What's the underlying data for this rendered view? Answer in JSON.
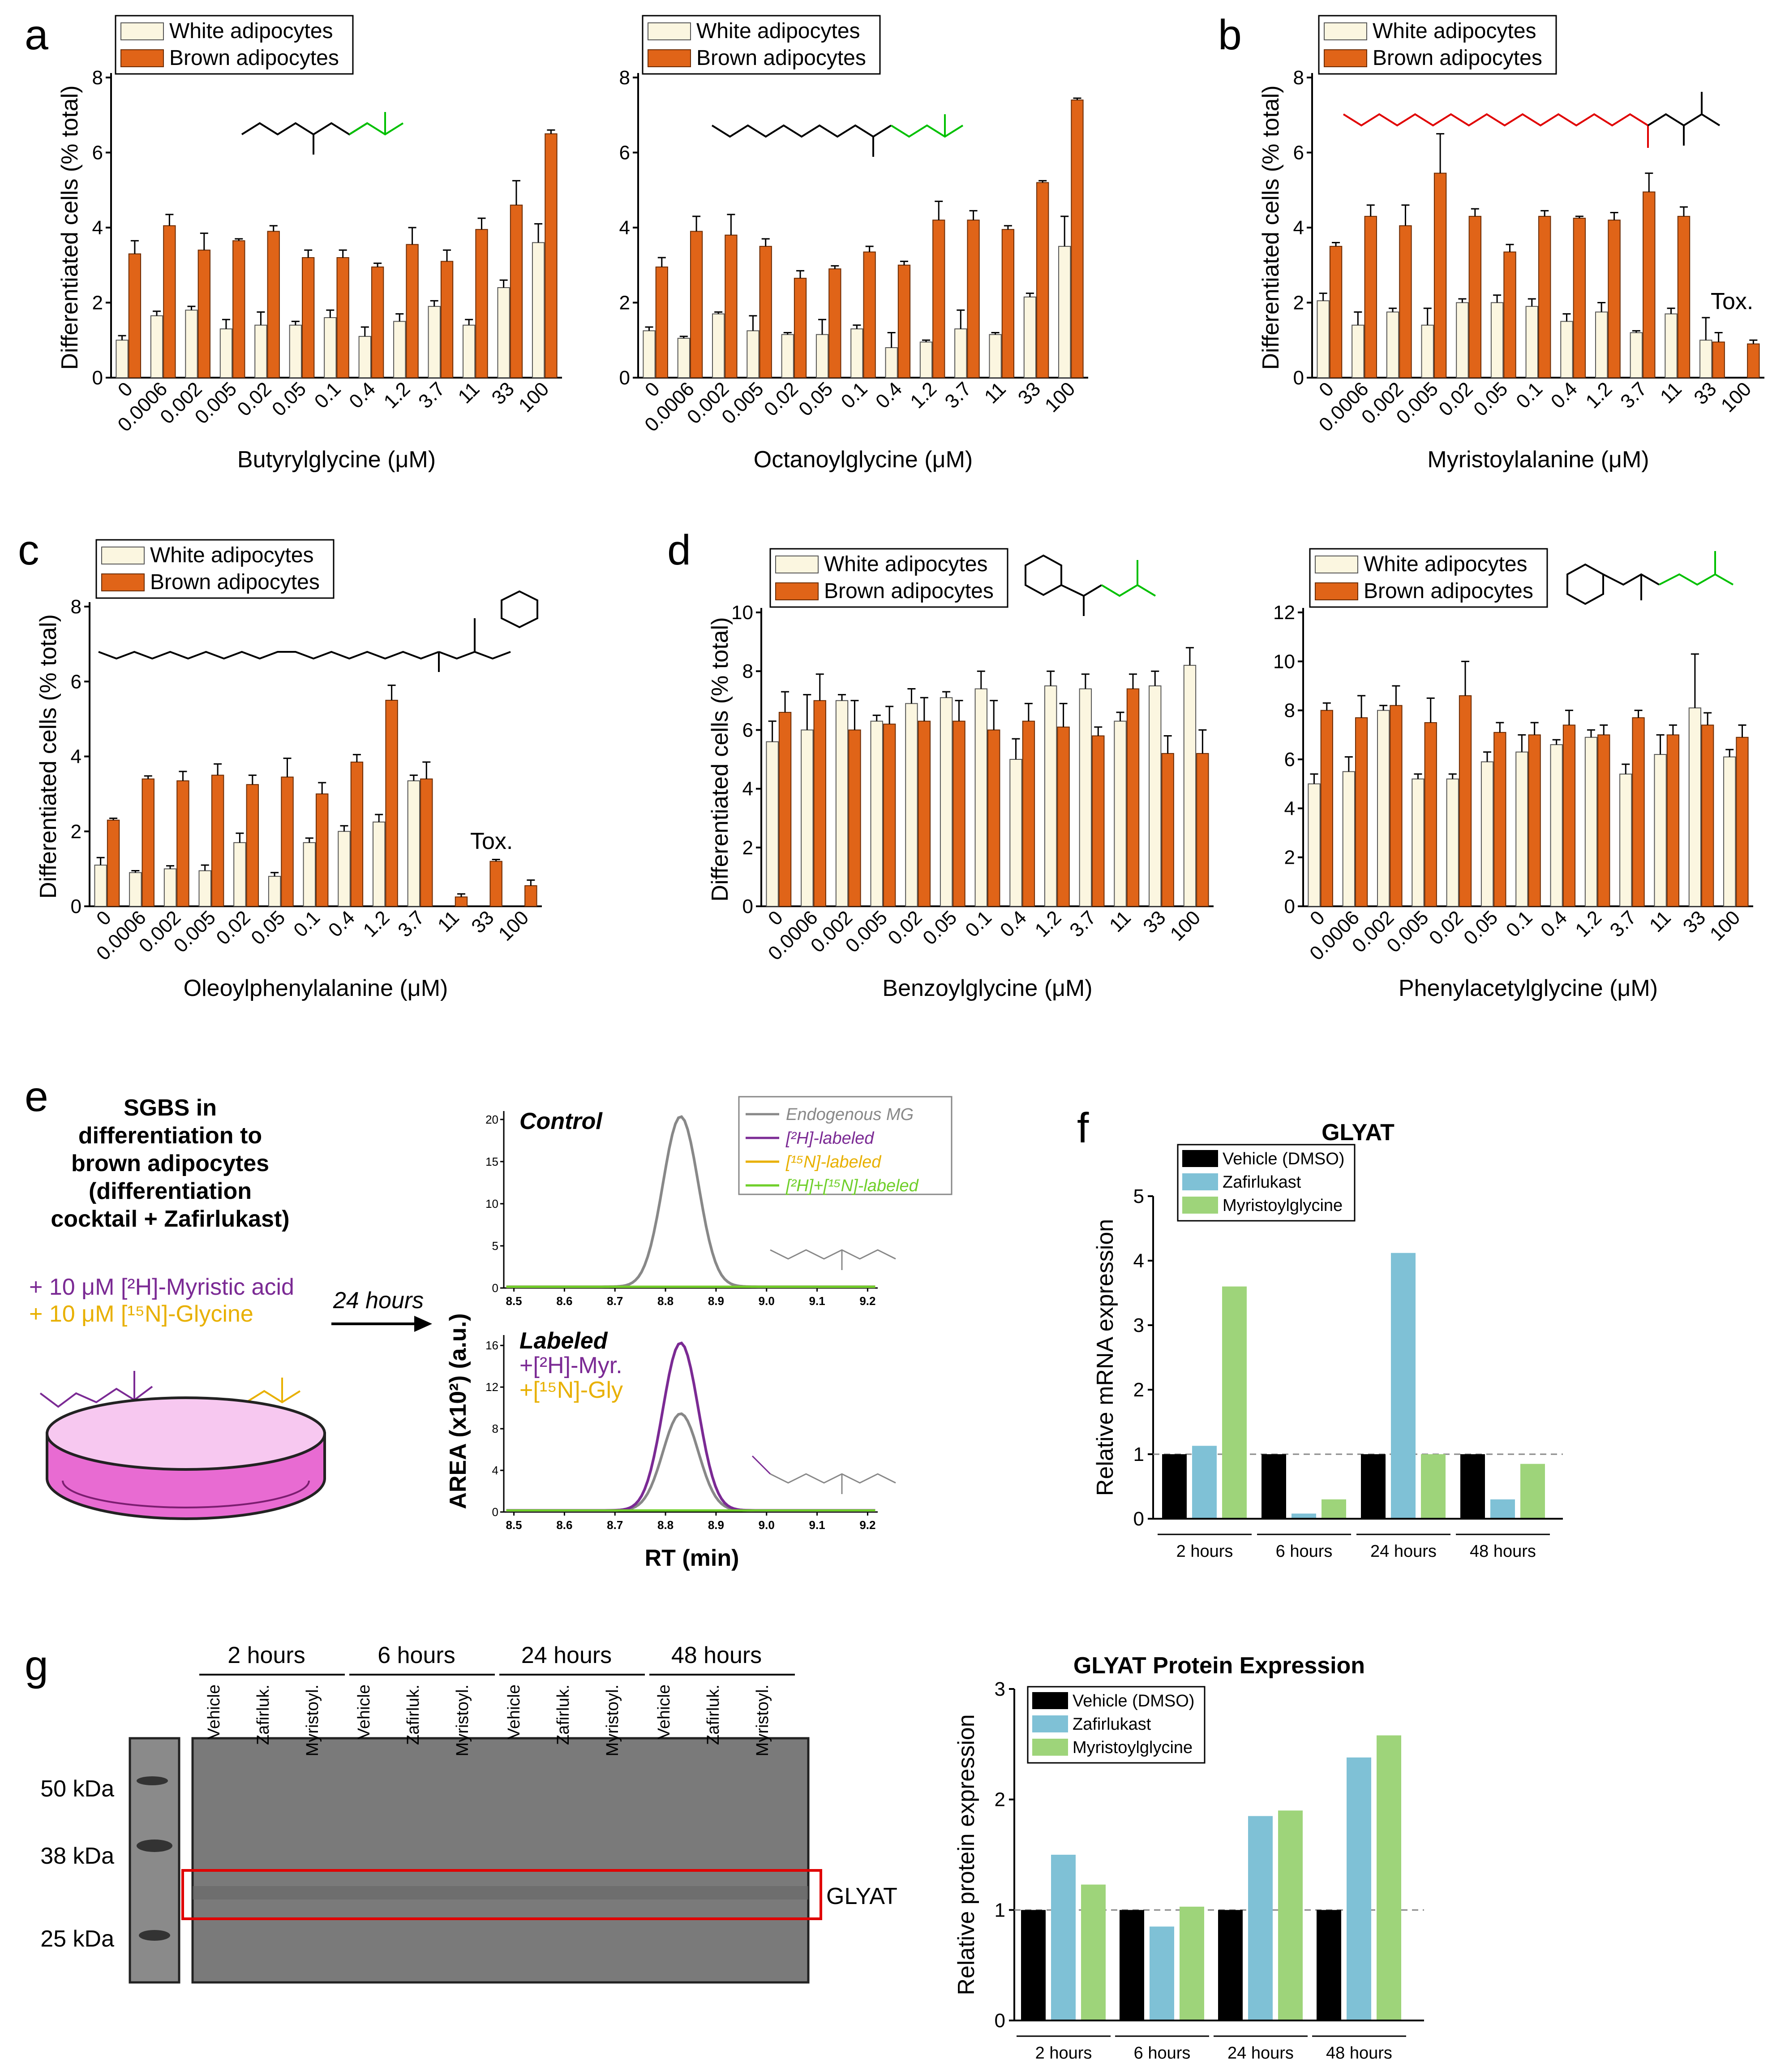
{
  "colors": {
    "white": "#FBF6E0",
    "brown": "#E06418",
    "vehicle": "#000000",
    "zafirlukast": "#7FC1D6",
    "myristoyl": "#9ED47A",
    "purple": "#7B2A94",
    "gold": "#E8B000",
    "green": "#6FCF2A",
    "grey": "#888888",
    "red": "#E00000"
  },
  "panels": {
    "a": "a",
    "b": "b",
    "c": "c",
    "d": "d",
    "e": "e",
    "f": "f",
    "g": "g"
  },
  "legend": {
    "white": "White adipocytes",
    "brown": "Brown adipocytes"
  },
  "common": {
    "ylabel": "Differentiated cells (% total)",
    "tox": "Tox."
  },
  "chart_data": [
    {
      "id": "butyryl",
      "type": "bar",
      "xlabel": "Butyrylglycine (μM)",
      "ylim": [
        0,
        8
      ],
      "yticks": [
        0,
        2,
        4,
        6,
        8
      ],
      "categories": [
        "0",
        "0.0006",
        "0.002",
        "0.005",
        "0.02",
        "0.05",
        "0.1",
        "0.4",
        "1.2",
        "3.7",
        "11",
        "33",
        "100"
      ],
      "series": [
        {
          "name": "White adipocytes",
          "values": [
            1.0,
            1.65,
            1.8,
            1.3,
            1.4,
            1.4,
            1.6,
            1.1,
            1.5,
            1.9,
            1.4,
            2.4,
            3.6
          ],
          "err": [
            0.12,
            0.12,
            0.1,
            0.25,
            0.35,
            0.1,
            0.2,
            0.25,
            0.2,
            0.15,
            0.15,
            0.2,
            0.5
          ]
        },
        {
          "name": "Brown adipocytes",
          "values": [
            3.3,
            4.05,
            3.4,
            3.65,
            3.9,
            3.2,
            3.2,
            2.95,
            3.55,
            3.1,
            3.95,
            4.6,
            6.5
          ],
          "err": [
            0.35,
            0.3,
            0.45,
            0.05,
            0.15,
            0.2,
            0.2,
            0.1,
            0.45,
            0.3,
            0.3,
            0.65,
            0.1
          ]
        }
      ]
    },
    {
      "id": "octanoyl",
      "type": "bar",
      "xlabel": "Octanoylglycine (μM)",
      "ylim": [
        0,
        8
      ],
      "yticks": [
        0,
        2,
        4,
        6,
        8
      ],
      "categories": [
        "0",
        "0.0006",
        "0.002",
        "0.005",
        "0.02",
        "0.05",
        "0.1",
        "0.4",
        "1.2",
        "3.7",
        "11",
        "33",
        "100"
      ],
      "series": [
        {
          "name": "White adipocytes",
          "values": [
            1.25,
            1.05,
            1.7,
            1.25,
            1.15,
            1.15,
            1.3,
            0.8,
            0.95,
            1.3,
            1.15,
            2.15,
            3.5
          ],
          "err": [
            0.1,
            0.05,
            0.05,
            0.4,
            0.05,
            0.4,
            0.1,
            0.4,
            0.05,
            0.5,
            0.05,
            0.1,
            0.8
          ]
        },
        {
          "name": "Brown adipocytes",
          "values": [
            2.95,
            3.9,
            3.8,
            3.5,
            2.65,
            2.9,
            3.35,
            3.0,
            4.2,
            4.2,
            3.95,
            5.2,
            7.4
          ],
          "err": [
            0.25,
            0.4,
            0.55,
            0.2,
            0.2,
            0.08,
            0.15,
            0.1,
            0.5,
            0.25,
            0.1,
            0.05,
            0.05
          ]
        }
      ]
    },
    {
      "id": "myristoyl",
      "type": "bar",
      "xlabel": "Myristoylalanine (μM)",
      "ylim": [
        0,
        8
      ],
      "yticks": [
        0,
        2,
        4,
        6,
        8
      ],
      "annotation": "Tox.",
      "categories": [
        "0",
        "0.0006",
        "0.002",
        "0.005",
        "0.02",
        "0.05",
        "0.1",
        "0.4",
        "1.2",
        "3.7",
        "11",
        "33",
        "100"
      ],
      "series": [
        {
          "name": "White adipocytes",
          "values": [
            2.05,
            1.4,
            1.75,
            1.4,
            2.0,
            2.0,
            1.9,
            1.5,
            1.75,
            1.2,
            1.7,
            1.0,
            0
          ],
          "err": [
            0.2,
            0.35,
            0.1,
            0.45,
            0.1,
            0.2,
            0.2,
            0.2,
            0.25,
            0.05,
            0.15,
            0.6,
            0
          ]
        },
        {
          "name": "Brown adipocytes",
          "values": [
            3.5,
            4.3,
            4.05,
            5.45,
            4.3,
            3.35,
            4.3,
            4.25,
            4.2,
            4.95,
            4.3,
            0.95,
            0.9
          ],
          "err": [
            0.1,
            0.3,
            0.55,
            1.05,
            0.2,
            0.2,
            0.15,
            0.05,
            0.2,
            0.5,
            0.25,
            0.25,
            0.1
          ]
        }
      ]
    },
    {
      "id": "oleoyl",
      "type": "bar",
      "xlabel": "Oleoylphenylalanine (μM)",
      "ylim": [
        0,
        8
      ],
      "yticks": [
        0,
        2,
        4,
        6,
        8
      ],
      "annotation": "Tox.",
      "categories": [
        "0",
        "0.0006",
        "0.002",
        "0.005",
        "0.02",
        "0.05",
        "0.1",
        "0.4",
        "1.2",
        "3.7",
        "11",
        "33",
        "100"
      ],
      "series": [
        {
          "name": "White adipocytes",
          "values": [
            1.1,
            0.9,
            1.0,
            0.95,
            1.7,
            0.8,
            1.7,
            2.0,
            2.25,
            3.35,
            0,
            0,
            0
          ],
          "err": [
            0.2,
            0.05,
            0.08,
            0.15,
            0.25,
            0.1,
            0.12,
            0.15,
            0.2,
            0.15,
            0,
            0,
            0
          ]
        },
        {
          "name": "Brown adipocytes",
          "values": [
            2.3,
            3.4,
            3.35,
            3.5,
            3.25,
            3.45,
            3.0,
            3.85,
            5.5,
            3.4,
            0.25,
            1.2,
            0.55
          ],
          "err": [
            0.05,
            0.08,
            0.25,
            0.3,
            0.25,
            0.5,
            0.3,
            0.2,
            0.4,
            0.45,
            0.08,
            0.05,
            0.15
          ]
        }
      ]
    },
    {
      "id": "benzoyl",
      "type": "bar",
      "xlabel": "Benzoylglycine (μM)",
      "ylim": [
        0,
        10
      ],
      "yticks": [
        0,
        2,
        4,
        6,
        8,
        10
      ],
      "categories": [
        "0",
        "0.0006",
        "0.002",
        "0.005",
        "0.02",
        "0.05",
        "0.1",
        "0.4",
        "1.2",
        "3.7",
        "11",
        "33",
        "100"
      ],
      "series": [
        {
          "name": "White adipocytes",
          "values": [
            5.6,
            6.0,
            7.0,
            6.3,
            6.9,
            7.1,
            7.4,
            5.0,
            7.5,
            7.4,
            6.3,
            7.5,
            8.2
          ],
          "err": [
            0.7,
            1.2,
            0.2,
            0.2,
            0.5,
            0.2,
            0.6,
            0.7,
            0.5,
            0.5,
            0.3,
            0.5,
            0.6
          ]
        },
        {
          "name": "Brown adipocytes",
          "values": [
            6.6,
            7.0,
            6.0,
            6.2,
            6.3,
            6.3,
            6.0,
            6.3,
            6.1,
            5.8,
            7.4,
            5.2,
            5.2
          ],
          "err": [
            0.7,
            0.9,
            1.0,
            0.6,
            0.8,
            0.7,
            1.0,
            0.6,
            0.8,
            0.3,
            0.5,
            0.6,
            0.8
          ]
        }
      ]
    },
    {
      "id": "phenylacetyl",
      "type": "bar",
      "xlabel": "Phenylacetylglycine (μM)",
      "ylim": [
        0,
        12
      ],
      "yticks": [
        0,
        2,
        4,
        6,
        8,
        10,
        12
      ],
      "categories": [
        "0",
        "0.0006",
        "0.002",
        "0.005",
        "0.02",
        "0.05",
        "0.1",
        "0.4",
        "1.2",
        "3.7",
        "11",
        "33",
        "100"
      ],
      "series": [
        {
          "name": "White adipocytes",
          "values": [
            5.0,
            5.5,
            8.0,
            5.2,
            5.2,
            5.9,
            6.3,
            6.6,
            6.9,
            5.4,
            6.2,
            8.1,
            6.1
          ],
          "err": [
            0.4,
            0.6,
            0.2,
            0.2,
            0.2,
            0.4,
            0.7,
            0.2,
            0.3,
            0.4,
            0.8,
            2.2,
            0.3
          ]
        },
        {
          "name": "Brown adipocytes",
          "values": [
            8.0,
            7.7,
            8.2,
            7.5,
            8.6,
            7.1,
            7.0,
            7.4,
            7.0,
            7.7,
            7.0,
            7.4,
            6.9
          ],
          "err": [
            0.3,
            0.9,
            0.8,
            1.0,
            1.4,
            0.4,
            0.5,
            0.6,
            0.4,
            0.3,
            0.4,
            0.5,
            0.5
          ]
        }
      ]
    },
    {
      "id": "glyat-mrna",
      "type": "bar",
      "title": "GLYAT",
      "ylabel": "Relative mRNA expression",
      "ylim": [
        0,
        5
      ],
      "yticks": [
        0,
        1,
        2,
        3,
        4,
        5
      ],
      "categories": [
        "2 hours",
        "6 hours",
        "24 hours",
        "48 hours"
      ],
      "series": [
        {
          "name": "Vehicle (DMSO)",
          "values": [
            1,
            1,
            1,
            1
          ]
        },
        {
          "name": "Zafirlukast",
          "values": [
            1.13,
            0.08,
            4.12,
            0.3
          ]
        },
        {
          "name": "Myristoylglycine",
          "values": [
            3.6,
            0.3,
            1.0,
            0.85
          ]
        }
      ]
    },
    {
      "id": "glyat-protein",
      "type": "bar",
      "title": "GLYAT Protein Expression",
      "ylabel": "Relative protein expression",
      "ylim": [
        0,
        3
      ],
      "yticks": [
        0,
        1,
        2,
        3
      ],
      "categories": [
        "2 hours",
        "6 hours",
        "24 hours",
        "48 hours"
      ],
      "series": [
        {
          "name": "Vehicle (DMSO)",
          "values": [
            1,
            1,
            1,
            1
          ]
        },
        {
          "name": "Zafirlukast",
          "values": [
            1.5,
            0.85,
            1.85,
            2.38
          ]
        },
        {
          "name": "Myristoylglycine",
          "values": [
            1.23,
            1.03,
            1.9,
            2.58
          ]
        }
      ]
    },
    {
      "id": "lcms-control",
      "type": "line",
      "title": "Control",
      "ylim": [
        0,
        21
      ],
      "yticks": [
        0,
        5,
        10,
        15,
        20
      ],
      "xlim": [
        8.48,
        9.22
      ],
      "xticks": [
        "8.5",
        "8.6",
        "8.7",
        "8.8",
        "8.9",
        "9.0",
        "9.1",
        "9.2"
      ],
      "series": [
        {
          "name": "Endogenous MG",
          "center": 8.83,
          "peak": 20.2
        },
        {
          "name": "[2H]-labeled",
          "peak": 0
        },
        {
          "name": "[15N]-labeled",
          "peak": 0
        },
        {
          "name": "[2H]+[15N]-labeled",
          "peak": 0
        }
      ]
    },
    {
      "id": "lcms-labeled",
      "type": "line",
      "title": "Labeled",
      "ylim": [
        0,
        17
      ],
      "yticks": [
        0,
        4,
        8,
        12,
        16
      ],
      "xlim": [
        8.48,
        9.22
      ],
      "xticks": [
        "8.5",
        "8.6",
        "8.7",
        "8.8",
        "8.9",
        "9.0",
        "9.1",
        "9.2"
      ],
      "series": [
        {
          "name": "Endogenous MG",
          "center": 8.83,
          "peak": 9.3
        },
        {
          "name": "[2H]-labeled",
          "center": 8.83,
          "peak": 16.1
        },
        {
          "name": "[15N]-labeled",
          "peak": 0
        },
        {
          "name": "[2H]+[15N]-labeled",
          "peak": 0
        }
      ]
    }
  ],
  "panel_e": {
    "sgbs_lines": [
      "SGBS in",
      "differentiation to",
      "brown adipocytes",
      "(differentiation",
      "cocktail + Zafirlukast)"
    ],
    "add1": "+ 10 μM [²H]-Myristic acid",
    "add2": "+ 10 μM [¹⁵N]-Glycine",
    "arrow": "24 hours",
    "yaxis": "AREA (x10²) (a.u.)",
    "xaxis": "RT (min)",
    "control": "Control",
    "labeled": "Labeled",
    "lab1": "+[²H]-Myr.",
    "lab2": "+[¹⁵N]-Gly",
    "legend": [
      "Endogenous MG",
      "[²H]-labeled",
      "[¹⁵N]-labeled",
      "[²H]+[¹⁵N]-labeled"
    ]
  },
  "panel_f": {
    "legend": [
      "Vehicle (DMSO)",
      "Zafirlukast",
      "Myristoylglycine"
    ]
  },
  "panel_g": {
    "times": [
      "2 hours",
      "6 hours",
      "24 hours",
      "48 hours"
    ],
    "lanes": [
      "Vehicle",
      "Zafirluk.",
      "Myristoyl."
    ],
    "markers": [
      "50 kDa",
      "38 kDa",
      "25 kDa"
    ],
    "band": "GLYAT"
  }
}
